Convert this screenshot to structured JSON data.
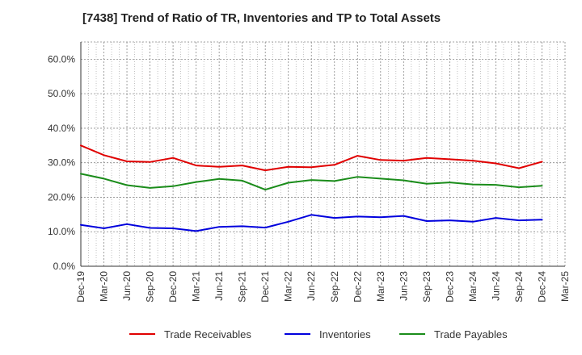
{
  "chart_data": {
    "type": "line",
    "title": "[7438]  Trend of Ratio of TR, Inventories and TP to Total Assets",
    "x": [
      "Dec-19",
      "Mar-20",
      "Jun-20",
      "Sep-20",
      "Dec-20",
      "Mar-21",
      "Jun-21",
      "Sep-21",
      "Dec-21",
      "Mar-22",
      "Jun-22",
      "Sep-22",
      "Dec-22",
      "Mar-23",
      "Jun-23",
      "Sep-23",
      "Dec-23",
      "Mar-24",
      "Jun-24",
      "Sep-24",
      "Dec-24"
    ],
    "x_ticks": [
      "Dec-19",
      "Mar-20",
      "Jun-20",
      "Sep-20",
      "Dec-20",
      "Mar-21",
      "Jun-21",
      "Sep-21",
      "Dec-21",
      "Mar-22",
      "Jun-22",
      "Sep-22",
      "Dec-22",
      "Mar-23",
      "Jun-23",
      "Sep-23",
      "Dec-23",
      "Mar-24",
      "Jun-24",
      "Sep-24",
      "Dec-24",
      "Mar-25"
    ],
    "y_ticks": [
      {
        "value": 0,
        "label": "0.0%"
      },
      {
        "value": 10,
        "label": "10.0%"
      },
      {
        "value": 20,
        "label": "20.0%"
      },
      {
        "value": 30,
        "label": "30.0%"
      },
      {
        "value": 40,
        "label": "40.0%"
      },
      {
        "value": 50,
        "label": "50.0%"
      },
      {
        "value": 60,
        "label": "60.0%"
      }
    ],
    "ylim": [
      0,
      65
    ],
    "grid": true,
    "legend_position": "bottom",
    "series": [
      {
        "name": "Trade Receivables",
        "color": "#e00000",
        "values": [
          35.0,
          32.2,
          30.4,
          30.2,
          31.4,
          29.2,
          28.8,
          29.2,
          27.8,
          28.8,
          28.7,
          29.4,
          32.0,
          30.8,
          30.6,
          31.4,
          31.0,
          30.6,
          29.8,
          28.4,
          30.3
        ]
      },
      {
        "name": "Inventories",
        "color": "#0000dd",
        "values": [
          12.0,
          11.0,
          12.2,
          11.1,
          11.0,
          10.2,
          11.4,
          11.6,
          11.2,
          12.9,
          14.9,
          14.0,
          14.4,
          14.2,
          14.6,
          13.1,
          13.3,
          12.9,
          14.0,
          13.3,
          13.5
        ]
      },
      {
        "name": "Trade Payables",
        "color": "#1a8c1a",
        "values": [
          26.8,
          25.4,
          23.5,
          22.7,
          23.2,
          24.4,
          25.3,
          24.8,
          22.2,
          24.2,
          25.0,
          24.7,
          25.9,
          25.4,
          24.9,
          23.9,
          24.3,
          23.7,
          23.6,
          22.9,
          23.3
        ]
      }
    ]
  }
}
